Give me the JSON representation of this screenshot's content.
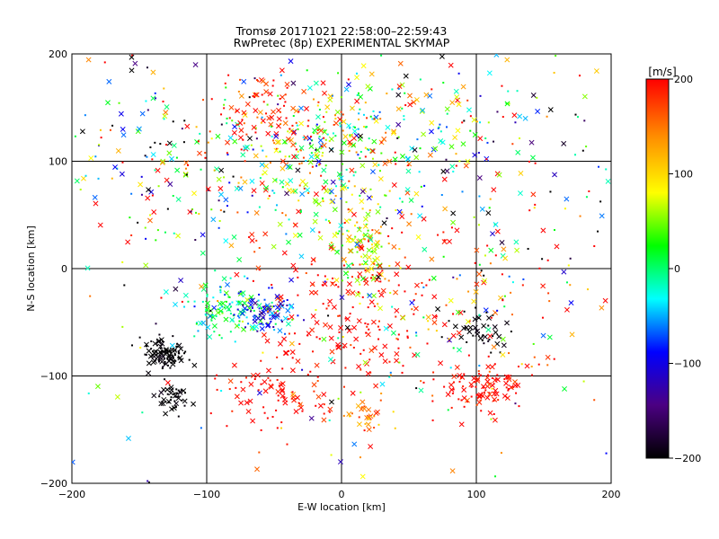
{
  "chart_data": {
    "type": "scatter",
    "title": "Tromsø 20171021 22:58:00–22:59:43",
    "subtitle": "RwPretec (8p) EXPERIMENTAL SKYMAP",
    "xlabel": "E-W location [km]",
    "ylabel": "N-S location [km]",
    "xlim": [
      -200,
      200
    ],
    "ylim": [
      -200,
      200
    ],
    "xticks": [
      -200,
      -100,
      0,
      100,
      200
    ],
    "yticks": [
      -200,
      -100,
      0,
      100,
      200
    ],
    "xtick_labels": [
      "−200",
      "−100",
      "0",
      "100",
      "200"
    ],
    "ytick_labels": [
      "−200",
      "−100",
      "0",
      "100",
      "200"
    ],
    "grid": true,
    "marker_styles": [
      "x",
      "dot"
    ],
    "colorbar": {
      "label": "[m/s]",
      "range": [
        -200,
        200
      ],
      "ticks": [
        200,
        100,
        0,
        -100,
        -200
      ],
      "tick_labels": [
        "200",
        "100",
        "0",
        "−100",
        "−200"
      ],
      "colormap_stops": [
        "#000000",
        "#4b0082",
        "#0000ff",
        "#00ffff",
        "#00ff00",
        "#ffff00",
        "#ff8c00",
        "#ff0000"
      ]
    },
    "clusters": [
      {
        "x": 0,
        "y": 120,
        "sx": 30,
        "sy": 35,
        "n": 220,
        "v": 40,
        "dv": 80
      },
      {
        "x": 15,
        "y": 20,
        "sx": 15,
        "sy": 20,
        "n": 120,
        "v": 80,
        "dv": 40
      },
      {
        "x": 0,
        "y": -30,
        "sx": 35,
        "sy": 40,
        "n": 180,
        "v": 200,
        "dv": 20
      },
      {
        "x": -130,
        "y": -80,
        "sx": 8,
        "sy": 7,
        "n": 110,
        "v": -200,
        "dv": 5
      },
      {
        "x": -125,
        "y": -120,
        "sx": 6,
        "sy": 7,
        "n": 45,
        "v": -200,
        "dv": 5
      },
      {
        "x": -85,
        "y": -40,
        "sx": 15,
        "sy": 12,
        "n": 110,
        "v": 0,
        "dv": 40
      },
      {
        "x": -55,
        "y": -40,
        "sx": 12,
        "sy": 12,
        "n": 80,
        "v": -80,
        "dv": 30
      },
      {
        "x": 105,
        "y": -110,
        "sx": 15,
        "sy": 12,
        "n": 100,
        "v": 200,
        "dv": 15
      },
      {
        "x": 100,
        "y": -55,
        "sx": 10,
        "sy": 10,
        "n": 45,
        "v": -200,
        "dv": 8
      },
      {
        "x": -50,
        "y": -120,
        "sx": 25,
        "sy": 15,
        "n": 80,
        "v": 200,
        "dv": 15
      },
      {
        "x": 20,
        "y": -140,
        "sx": 10,
        "sy": 15,
        "n": 30,
        "v": 150,
        "dv": 30
      },
      {
        "x": -50,
        "y": 140,
        "sx": 30,
        "sy": 25,
        "n": 110,
        "v": 190,
        "dv": 30
      },
      {
        "x": -60,
        "y": 70,
        "sx": 40,
        "sy": 40,
        "n": 140,
        "v": 60,
        "dv": 110
      },
      {
        "x": -150,
        "y": 120,
        "sx": 40,
        "sy": 50,
        "n": 110,
        "v": 0,
        "dv": 170
      },
      {
        "x": 120,
        "y": 80,
        "sx": 50,
        "sy": 60,
        "n": 130,
        "v": 0,
        "dv": 170
      },
      {
        "x": 80,
        "y": -50,
        "sx": 50,
        "sy": 50,
        "n": 110,
        "v": 150,
        "dv": 80
      },
      {
        "x": 60,
        "y": 140,
        "sx": 40,
        "sy": 25,
        "n": 80,
        "v": 50,
        "dv": 130
      },
      {
        "x": 0,
        "y": 0,
        "sx": 140,
        "sy": 130,
        "n": 260,
        "v": 30,
        "dv": 150
      }
    ]
  }
}
